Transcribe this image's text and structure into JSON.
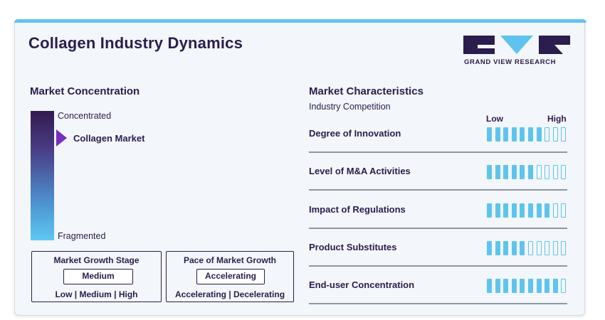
{
  "title": "Collagen Industry Dynamics",
  "logo": {
    "text": "GRAND VIEW RESEARCH",
    "colors": {
      "dark": "#2b1d4d",
      "light": "#5ec4ee"
    }
  },
  "market_concentration": {
    "title": "Market Concentration",
    "top_label": "Concentrated",
    "bottom_label": "Fragmented",
    "marker_label": "Collagen Market"
  },
  "market_growth_stage": {
    "title": "Market Growth Stage",
    "value": "Medium",
    "scale": "Low  |  Medium  |  High"
  },
  "pace_of_market_growth": {
    "title": "Pace of Market Growth",
    "value": "Accelerating",
    "scale": "Accelerating  |  Decelerating"
  },
  "market_characteristics": {
    "title": "Market Characteristics",
    "subtitle": "Industry Competition",
    "scale_low": "Low",
    "scale_high": "High",
    "total_segments": 10,
    "rows": [
      {
        "label": "Degree of Innovation",
        "filled": 7
      },
      {
        "label": "Level of M&A Activities",
        "filled": 6
      },
      {
        "label": "Impact of Regulations",
        "filled": 8
      },
      {
        "label": "Product Substitutes",
        "filled": 5
      },
      {
        "label": "End-user Concentration",
        "filled": 9
      }
    ]
  },
  "colors": {
    "accent": "#5ec4ee",
    "dark": "#2b1d4d",
    "marker": "#7a2dbd"
  }
}
